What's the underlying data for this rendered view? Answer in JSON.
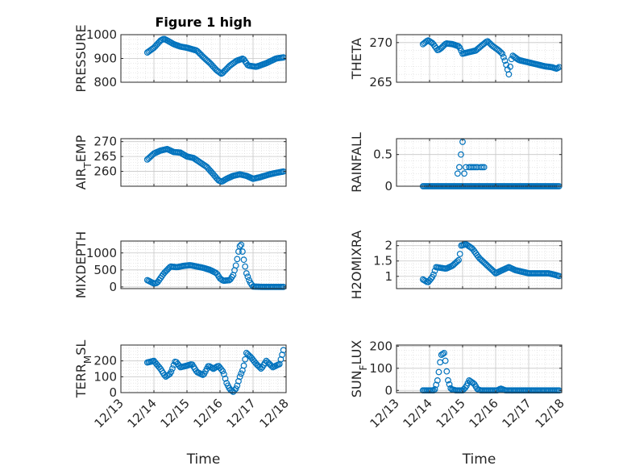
{
  "figure": {
    "title": "Figure 1 high"
  },
  "x_axis": {
    "ticks": [
      0,
      1,
      2,
      3,
      4,
      5
    ],
    "tick_labels": [
      "12/13",
      "12/14",
      "12/15",
      "12/16",
      "12/17",
      "12/18"
    ],
    "label": "Time"
  },
  "chart_data": [
    {
      "type": "scatter",
      "title": "Figure 1 high",
      "ylabel": "PRESSURE",
      "ylim": [
        800,
        1000
      ],
      "yticks": [
        800,
        900,
        1000
      ],
      "yticklabels": [
        "800",
        "900",
        "1000"
      ],
      "grid": true,
      "keys": [
        [
          0.8,
          925
        ],
        [
          1.0,
          945
        ],
        [
          1.2,
          975
        ],
        [
          1.3,
          983
        ],
        [
          1.45,
          972
        ],
        [
          1.6,
          960
        ],
        [
          1.8,
          950
        ],
        [
          2.0,
          945
        ],
        [
          2.3,
          933
        ],
        [
          2.5,
          905
        ],
        [
          2.7,
          880
        ],
        [
          2.9,
          850
        ],
        [
          3.05,
          835
        ],
        [
          3.3,
          870
        ],
        [
          3.5,
          890
        ],
        [
          3.7,
          900
        ],
        [
          3.85,
          870
        ],
        [
          4.1,
          865
        ],
        [
          4.4,
          880
        ],
        [
          4.7,
          900
        ],
        [
          4.95,
          905
        ]
      ],
      "step": 0.04,
      "series": [
        {
          "name": "",
          "color": "#0072BD"
        }
      ]
    },
    {
      "type": "scatter",
      "ylabel": "THETA",
      "ylim": [
        265,
        271
      ],
      "yticks": [
        265,
        270
      ],
      "yticklabels": [
        "265",
        "270"
      ],
      "grid": true,
      "keys": [
        [
          0.8,
          269.8
        ],
        [
          0.95,
          270.3
        ],
        [
          1.1,
          269.9
        ],
        [
          1.25,
          269.0
        ],
        [
          1.35,
          269.3
        ],
        [
          1.5,
          269.9
        ],
        [
          1.7,
          269.8
        ],
        [
          1.9,
          269.5
        ],
        [
          2.0,
          268.6
        ],
        [
          2.2,
          268.8
        ],
        [
          2.4,
          269.0
        ],
        [
          2.6,
          269.7
        ],
        [
          2.75,
          270.2
        ],
        [
          2.9,
          269.6
        ],
        [
          3.1,
          269.0
        ],
        [
          3.2,
          268.6
        ],
        [
          3.3,
          267.5
        ],
        [
          3.4,
          266.0
        ],
        [
          3.5,
          268.4
        ],
        [
          3.7,
          267.8
        ],
        [
          3.9,
          267.6
        ],
        [
          4.1,
          267.4
        ],
        [
          4.3,
          267.2
        ],
        [
          4.5,
          267.0
        ],
        [
          4.7,
          266.9
        ],
        [
          4.85,
          266.7
        ],
        [
          4.95,
          267.0
        ]
      ],
      "step": 0.04,
      "series": [
        {
          "name": "",
          "color": "#0072BD"
        }
      ]
    },
    {
      "type": "scatter",
      "ylabel": "AIR_TEMP",
      "ylim": [
        255,
        271
      ],
      "yticks": [
        260,
        265,
        270
      ],
      "yticklabels": [
        "260",
        "265",
        "270"
      ],
      "grid": true,
      "keys": [
        [
          0.8,
          264
        ],
        [
          1.0,
          266
        ],
        [
          1.2,
          267
        ],
        [
          1.4,
          267.5
        ],
        [
          1.6,
          266.5
        ],
        [
          1.8,
          266.3
        ],
        [
          2.0,
          265
        ],
        [
          2.2,
          264.5
        ],
        [
          2.4,
          263
        ],
        [
          2.6,
          261.5
        ],
        [
          2.8,
          259
        ],
        [
          2.95,
          257
        ],
        [
          3.05,
          256.5
        ],
        [
          3.2,
          257.5
        ],
        [
          3.4,
          258.5
        ],
        [
          3.6,
          259.0
        ],
        [
          3.8,
          258.5
        ],
        [
          4.0,
          257.5
        ],
        [
          4.2,
          258
        ],
        [
          4.5,
          259
        ],
        [
          4.7,
          259.5
        ],
        [
          4.95,
          260
        ]
      ],
      "step": 0.04,
      "series": [
        {
          "name": "",
          "color": "#0072BD"
        }
      ]
    },
    {
      "type": "scatter",
      "ylabel": "RAINFALL",
      "ylim": [
        0,
        0.75
      ],
      "yticks": [
        0,
        0.5
      ],
      "yticklabels": [
        "0",
        "0.5"
      ],
      "grid": true,
      "keys": [
        [
          0.8,
          0
        ],
        [
          4.95,
          0
        ]
      ],
      "step": 0.04,
      "extra_points": [
        [
          1.85,
          0.2
        ],
        [
          1.9,
          0.3
        ],
        [
          1.95,
          0.5
        ],
        [
          2.0,
          0.7
        ],
        [
          2.05,
          0.2
        ],
        [
          2.1,
          0.3
        ],
        [
          2.2,
          0.3
        ],
        [
          2.25,
          0.3
        ],
        [
          2.3,
          0.3
        ],
        [
          2.35,
          0.3
        ],
        [
          2.4,
          0.3
        ],
        [
          2.45,
          0.3
        ],
        [
          2.55,
          0.3
        ],
        [
          2.6,
          0.3
        ],
        [
          2.65,
          0.3
        ]
      ],
      "series": [
        {
          "name": "",
          "color": "#0072BD"
        }
      ]
    },
    {
      "type": "scatter",
      "ylabel": "MIXDEPTH",
      "ylim": [
        -50,
        1350
      ],
      "yticks": [
        0,
        500,
        1000
      ],
      "yticklabels": [
        "0",
        "500",
        "1000"
      ],
      "grid": true,
      "keys": [
        [
          0.8,
          200
        ],
        [
          1.0,
          100
        ],
        [
          1.1,
          120
        ],
        [
          1.3,
          400
        ],
        [
          1.5,
          600
        ],
        [
          1.7,
          580
        ],
        [
          1.9,
          620
        ],
        [
          2.1,
          640
        ],
        [
          2.3,
          600
        ],
        [
          2.5,
          560
        ],
        [
          2.7,
          500
        ],
        [
          2.9,
          400
        ],
        [
          3.0,
          250
        ],
        [
          3.1,
          180
        ],
        [
          3.3,
          200
        ],
        [
          3.4,
          350
        ],
        [
          3.5,
          700
        ],
        [
          3.55,
          1000
        ],
        [
          3.6,
          1200
        ],
        [
          3.65,
          1250
        ],
        [
          3.7,
          900
        ],
        [
          3.8,
          400
        ],
        [
          3.9,
          150
        ],
        [
          4.0,
          10
        ],
        [
          4.3,
          0
        ],
        [
          4.95,
          0
        ]
      ],
      "step": 0.04,
      "series": [
        {
          "name": "",
          "color": "#0072BD"
        }
      ]
    },
    {
      "type": "scatter",
      "ylabel": "H2OMIXRA",
      "ylim": [
        0.6,
        2.15
      ],
      "yticks": [
        1,
        1.5,
        2
      ],
      "yticklabels": [
        "1",
        "1.5",
        "2"
      ],
      "grid": true,
      "keys": [
        [
          0.8,
          0.9
        ],
        [
          0.95,
          0.8
        ],
        [
          1.1,
          1.0
        ],
        [
          1.2,
          1.3
        ],
        [
          1.5,
          1.25
        ],
        [
          1.7,
          1.35
        ],
        [
          1.9,
          1.55
        ],
        [
          1.95,
          2.0
        ],
        [
          2.1,
          2.05
        ],
        [
          2.3,
          1.9
        ],
        [
          2.5,
          1.6
        ],
        [
          2.7,
          1.4
        ],
        [
          2.9,
          1.2
        ],
        [
          3.0,
          1.1
        ],
        [
          3.2,
          1.2
        ],
        [
          3.4,
          1.3
        ],
        [
          3.6,
          1.2
        ],
        [
          3.8,
          1.15
        ],
        [
          4.0,
          1.1
        ],
        [
          4.3,
          1.1
        ],
        [
          4.6,
          1.1
        ],
        [
          4.8,
          1.05
        ],
        [
          4.95,
          1.0
        ]
      ],
      "step": 0.04,
      "series": [
        {
          "name": "",
          "color": "#0072BD"
        }
      ]
    },
    {
      "type": "scatter",
      "ylabel": "TERR_MSL",
      "ylim": [
        0,
        300
      ],
      "yticks": [
        0,
        100,
        200
      ],
      "yticklabels": [
        "0",
        "100",
        "200"
      ],
      "grid": true,
      "keys": [
        [
          0.8,
          190
        ],
        [
          1.0,
          200
        ],
        [
          1.2,
          150
        ],
        [
          1.35,
          100
        ],
        [
          1.5,
          120
        ],
        [
          1.65,
          200
        ],
        [
          1.8,
          160
        ],
        [
          2.0,
          170
        ],
        [
          2.15,
          180
        ],
        [
          2.3,
          130
        ],
        [
          2.5,
          110
        ],
        [
          2.65,
          170
        ],
        [
          2.8,
          150
        ],
        [
          2.95,
          170
        ],
        [
          3.1,
          130
        ],
        [
          3.2,
          60
        ],
        [
          3.3,
          20
        ],
        [
          3.4,
          5
        ],
        [
          3.5,
          30
        ],
        [
          3.6,
          100
        ],
        [
          3.7,
          150
        ],
        [
          3.8,
          250
        ],
        [
          3.95,
          220
        ],
        [
          4.1,
          180
        ],
        [
          4.25,
          150
        ],
        [
          4.4,
          200
        ],
        [
          4.6,
          160
        ],
        [
          4.8,
          180
        ],
        [
          4.95,
          290
        ]
      ],
      "step": 0.04,
      "series": [
        {
          "name": "",
          "color": "#0072BD"
        }
      ]
    },
    {
      "type": "scatter",
      "ylabel": "SUN_FLUX",
      "ylim": [
        -10,
        205
      ],
      "yticks": [
        0,
        100,
        200
      ],
      "yticklabels": [
        "0",
        "100",
        "200"
      ],
      "grid": true,
      "keys": [
        [
          0.8,
          0
        ],
        [
          1.15,
          0
        ],
        [
          1.25,
          50
        ],
        [
          1.35,
          160
        ],
        [
          1.45,
          170
        ],
        [
          1.55,
          50
        ],
        [
          1.65,
          5
        ],
        [
          1.8,
          0
        ],
        [
          2.0,
          0
        ],
        [
          2.1,
          15
        ],
        [
          2.2,
          45
        ],
        [
          2.35,
          30
        ],
        [
          2.45,
          5
        ],
        [
          2.55,
          0
        ],
        [
          3.05,
          0
        ],
        [
          3.15,
          8
        ],
        [
          3.3,
          0
        ],
        [
          4.95,
          0
        ]
      ],
      "step": 0.04,
      "series": [
        {
          "name": "",
          "color": "#0072BD"
        }
      ]
    }
  ]
}
